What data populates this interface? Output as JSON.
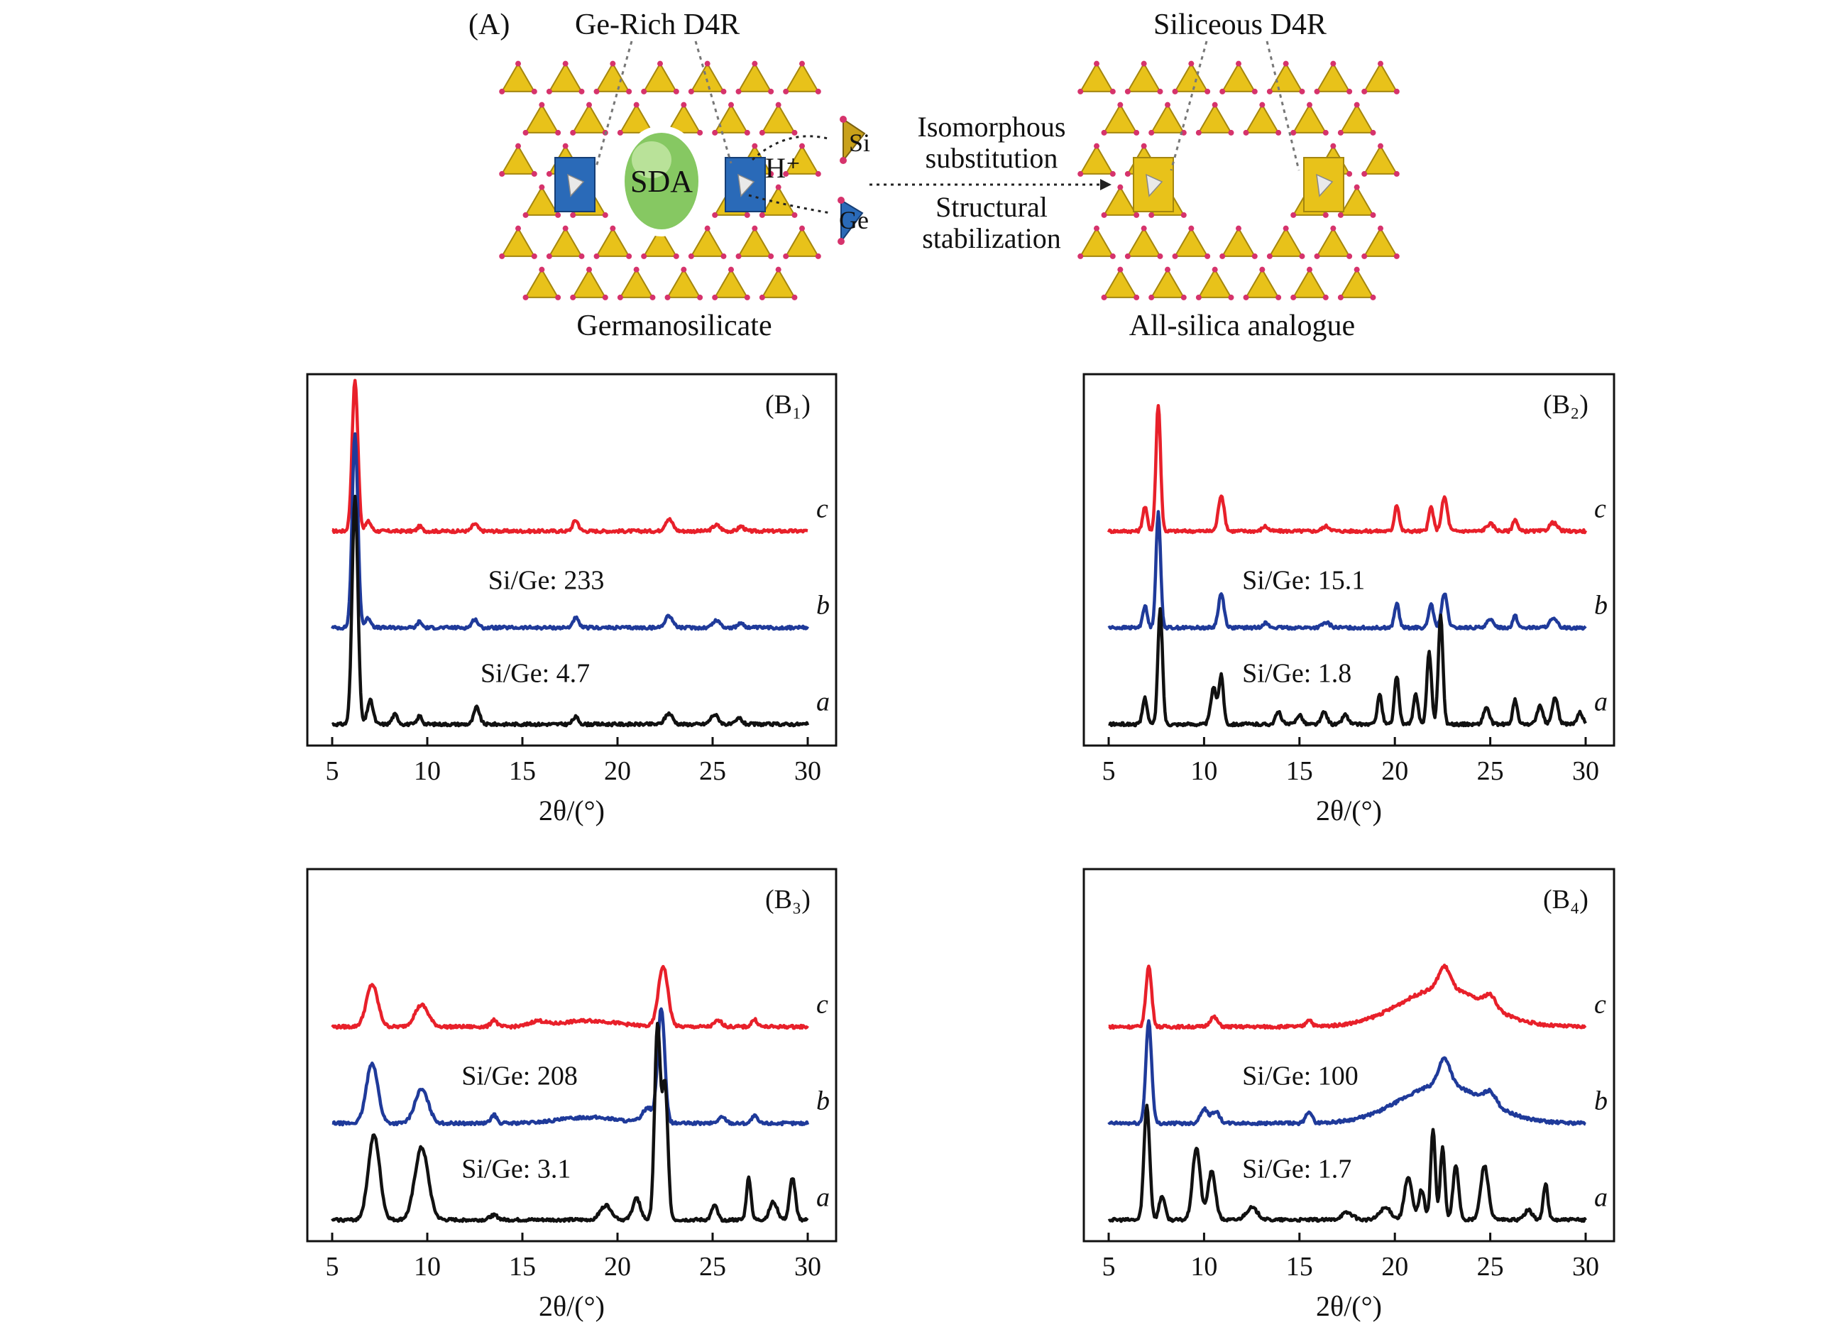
{
  "schematic": {
    "panel_label": "(A)",
    "ge_rich_label": "Ge-Rich D4R",
    "siliceous_label": "Siliceous D4R",
    "sda_label": "SDA",
    "proton_label": "H⁺",
    "si_label": "Si",
    "ge_label": "Ge",
    "arrow_text_1a": "Isomorphous",
    "arrow_text_1b": "substitution",
    "arrow_text_2a": "Structural",
    "arrow_text_2b": "stabilization",
    "left_caption": "Germanosilicate",
    "right_caption": "All-silica analogue",
    "colors": {
      "si_tetra": "#e8c21a",
      "ge_tetra": "#2a6ab8",
      "oxygen": "#d6336c",
      "sda": "#7cc25a"
    }
  },
  "chart_data": [
    {
      "type": "line",
      "panel_label": "(B₁)",
      "xlabel": "2θ/(°)",
      "xlim": [
        5,
        30
      ],
      "xticks": [
        "5",
        "10",
        "15",
        "20",
        "25",
        "30"
      ],
      "annotations": [
        "Si/Ge: 233",
        "Si/Ge: 4.7"
      ],
      "series": [
        {
          "name": "c",
          "color": "#e8202a",
          "offset": 1.6,
          "peaks": [
            [
              6.2,
              1.25,
              0.15
            ],
            [
              6.9,
              0.08,
              0.15
            ],
            [
              9.6,
              0.04,
              0.12
            ],
            [
              12.5,
              0.06,
              0.15
            ],
            [
              17.8,
              0.09,
              0.15
            ],
            [
              22.7,
              0.1,
              0.2
            ],
            [
              25.2,
              0.05,
              0.2
            ],
            [
              26.5,
              0.04,
              0.15
            ]
          ]
        },
        {
          "name": "b",
          "color": "#1f3a9a",
          "offset": 0.8,
          "peaks": [
            [
              6.2,
              1.6,
              0.15
            ],
            [
              6.9,
              0.08,
              0.15
            ],
            [
              9.6,
              0.05,
              0.12
            ],
            [
              12.5,
              0.07,
              0.15
            ],
            [
              17.8,
              0.08,
              0.15
            ],
            [
              22.7,
              0.1,
              0.2
            ],
            [
              25.2,
              0.06,
              0.2
            ],
            [
              26.5,
              0.04,
              0.15
            ]
          ]
        },
        {
          "name": "a",
          "color": "#111111",
          "offset": 0.0,
          "peaks": [
            [
              6.2,
              1.9,
              0.15
            ],
            [
              7.0,
              0.2,
              0.15
            ],
            [
              8.3,
              0.08,
              0.15
            ],
            [
              9.6,
              0.07,
              0.12
            ],
            [
              12.6,
              0.14,
              0.15
            ],
            [
              17.8,
              0.06,
              0.15
            ],
            [
              22.7,
              0.09,
              0.2
            ],
            [
              25.1,
              0.08,
              0.2
            ],
            [
              26.4,
              0.05,
              0.15
            ]
          ]
        }
      ]
    },
    {
      "type": "line",
      "panel_label": "(B₂)",
      "xlabel": "2θ/(°)",
      "xlim": [
        5,
        30
      ],
      "xticks": [
        "5",
        "10",
        "15",
        "20",
        "25",
        "30"
      ],
      "annotations": [
        "Si/Ge: 15.1",
        "Si/Ge: 1.8"
      ],
      "series": [
        {
          "name": "c",
          "color": "#e8202a",
          "offset": 1.6,
          "peaks": [
            [
              6.9,
              0.2,
              0.12
            ],
            [
              7.6,
              1.05,
              0.12
            ],
            [
              10.9,
              0.3,
              0.15
            ],
            [
              13.2,
              0.04,
              0.15
            ],
            [
              16.4,
              0.04,
              0.2
            ],
            [
              20.1,
              0.22,
              0.12
            ],
            [
              21.9,
              0.2,
              0.12
            ],
            [
              22.6,
              0.28,
              0.15
            ],
            [
              25.0,
              0.06,
              0.2
            ],
            [
              26.3,
              0.1,
              0.12
            ],
            [
              28.3,
              0.07,
              0.2
            ]
          ]
        },
        {
          "name": "b",
          "color": "#1f3a9a",
          "offset": 0.8,
          "peaks": [
            [
              6.9,
              0.18,
              0.12
            ],
            [
              7.6,
              0.95,
              0.12
            ],
            [
              10.9,
              0.28,
              0.15
            ],
            [
              13.2,
              0.04,
              0.15
            ],
            [
              16.4,
              0.04,
              0.2
            ],
            [
              20.1,
              0.2,
              0.12
            ],
            [
              21.9,
              0.2,
              0.12
            ],
            [
              22.6,
              0.28,
              0.15
            ],
            [
              25.0,
              0.06,
              0.2
            ],
            [
              26.3,
              0.1,
              0.12
            ],
            [
              28.3,
              0.07,
              0.2
            ]
          ]
        },
        {
          "name": "a",
          "color": "#111111",
          "offset": 0.0,
          "peaks": [
            [
              6.9,
              0.22,
              0.12
            ],
            [
              7.7,
              0.95,
              0.12
            ],
            [
              10.5,
              0.3,
              0.15
            ],
            [
              10.9,
              0.4,
              0.12
            ],
            [
              13.9,
              0.1,
              0.15
            ],
            [
              15.0,
              0.08,
              0.15
            ],
            [
              16.3,
              0.1,
              0.15
            ],
            [
              17.4,
              0.08,
              0.15
            ],
            [
              19.2,
              0.25,
              0.12
            ],
            [
              20.1,
              0.4,
              0.12
            ],
            [
              21.1,
              0.25,
              0.12
            ],
            [
              21.8,
              0.6,
              0.12
            ],
            [
              22.4,
              0.9,
              0.12
            ],
            [
              24.8,
              0.14,
              0.15
            ],
            [
              26.3,
              0.2,
              0.12
            ],
            [
              27.6,
              0.15,
              0.15
            ],
            [
              28.4,
              0.22,
              0.15
            ],
            [
              29.7,
              0.1,
              0.15
            ]
          ]
        }
      ]
    },
    {
      "type": "line",
      "panel_label": "(B₃)",
      "xlabel": "2θ/(°)",
      "xlim": [
        5,
        30
      ],
      "xticks": [
        "5",
        "10",
        "15",
        "20",
        "25",
        "30"
      ],
      "annotations": [
        "Si/Ge: 208",
        "Si/Ge: 3.1"
      ],
      "series": [
        {
          "name": "c",
          "color": "#e8202a",
          "offset": 1.6,
          "peaks": [
            [
              7.1,
              0.35,
              0.3
            ],
            [
              9.7,
              0.18,
              0.35
            ],
            [
              13.5,
              0.06,
              0.15
            ],
            [
              15.8,
              0.04,
              0.4
            ],
            [
              18.5,
              0.05,
              1.5
            ],
            [
              22.4,
              0.5,
              0.25
            ],
            [
              25.3,
              0.05,
              0.2
            ],
            [
              27.2,
              0.06,
              0.15
            ]
          ]
        },
        {
          "name": "b",
          "color": "#1f3a9a",
          "offset": 0.8,
          "peaks": [
            [
              7.1,
              0.5,
              0.3
            ],
            [
              9.7,
              0.28,
              0.35
            ],
            [
              13.5,
              0.07,
              0.15
            ],
            [
              18.5,
              0.05,
              1.5
            ],
            [
              21.6,
              0.12,
              0.3
            ],
            [
              22.3,
              0.95,
              0.18
            ],
            [
              25.5,
              0.05,
              0.2
            ],
            [
              27.2,
              0.06,
              0.15
            ]
          ]
        },
        {
          "name": "a",
          "color": "#111111",
          "offset": 0.0,
          "peaks": [
            [
              7.2,
              0.7,
              0.3
            ],
            [
              9.7,
              0.6,
              0.35
            ],
            [
              13.5,
              0.04,
              0.2
            ],
            [
              19.4,
              0.12,
              0.3
            ],
            [
              21.0,
              0.18,
              0.2
            ],
            [
              22.1,
              1.6,
              0.15
            ],
            [
              22.5,
              1.1,
              0.15
            ],
            [
              25.1,
              0.12,
              0.15
            ],
            [
              26.9,
              0.35,
              0.12
            ],
            [
              28.2,
              0.15,
              0.2
            ],
            [
              29.2,
              0.35,
              0.15
            ]
          ]
        }
      ]
    },
    {
      "type": "line",
      "panel_label": "(B₄)",
      "xlabel": "2θ/(°)",
      "xlim": [
        5,
        30
      ],
      "xticks": [
        "5",
        "10",
        "15",
        "20",
        "25",
        "30"
      ],
      "annotations": [
        "Si/Ge: 100",
        "Si/Ge: 1.7"
      ],
      "series": [
        {
          "name": "c",
          "color": "#e8202a",
          "offset": 1.6,
          "peaks": [
            [
              7.1,
              0.5,
              0.15
            ],
            [
              10.5,
              0.08,
              0.2
            ],
            [
              15.5,
              0.06,
              0.15
            ],
            [
              22.5,
              0.32,
              2.2
            ],
            [
              22.6,
              0.18,
              0.3
            ],
            [
              25.0,
              0.1,
              0.3
            ]
          ]
        },
        {
          "name": "b",
          "color": "#1f3a9a",
          "offset": 0.8,
          "peaks": [
            [
              7.1,
              0.85,
              0.15
            ],
            [
              10.0,
              0.12,
              0.2
            ],
            [
              10.6,
              0.1,
              0.2
            ],
            [
              15.5,
              0.1,
              0.15
            ],
            [
              22.5,
              0.32,
              2.2
            ],
            [
              22.6,
              0.22,
              0.3
            ],
            [
              25.0,
              0.1,
              0.3
            ]
          ]
        },
        {
          "name": "a",
          "color": "#111111",
          "offset": 0.0,
          "peaks": [
            [
              7.0,
              0.95,
              0.15
            ],
            [
              7.8,
              0.2,
              0.15
            ],
            [
              9.6,
              0.6,
              0.2
            ],
            [
              10.4,
              0.4,
              0.2
            ],
            [
              12.5,
              0.1,
              0.3
            ],
            [
              17.5,
              0.06,
              0.3
            ],
            [
              19.5,
              0.1,
              0.3
            ],
            [
              20.7,
              0.35,
              0.2
            ],
            [
              21.4,
              0.25,
              0.15
            ],
            [
              22.0,
              0.75,
              0.12
            ],
            [
              22.5,
              0.6,
              0.12
            ],
            [
              23.2,
              0.45,
              0.15
            ],
            [
              24.7,
              0.45,
              0.2
            ],
            [
              27.9,
              0.3,
              0.12
            ],
            [
              27.0,
              0.08,
              0.2
            ]
          ]
        }
      ]
    }
  ]
}
